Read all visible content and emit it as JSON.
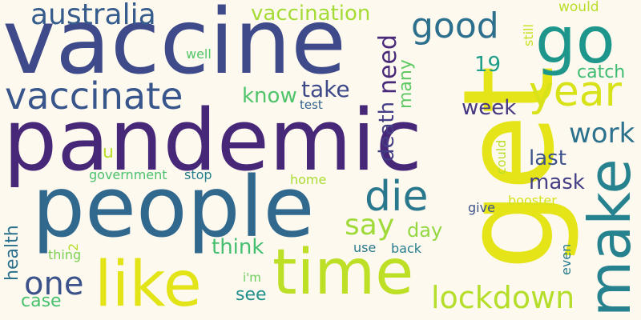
{
  "words": [
    {
      "id": "vaccine",
      "text": "vaccine",
      "color": "#3e4a89",
      "rotated": false
    },
    {
      "id": "pandemic",
      "text": "pandemic",
      "color": "#472777",
      "rotated": false
    },
    {
      "id": "people",
      "text": "people",
      "color": "#31688e",
      "rotated": false
    },
    {
      "id": "get",
      "text": "get",
      "color": "#e5e419",
      "rotated": true
    },
    {
      "id": "time",
      "text": "time",
      "color": "#bddf26",
      "rotated": false
    },
    {
      "id": "like",
      "text": "like",
      "color": "#e2e418",
      "rotated": false
    },
    {
      "id": "go",
      "text": "go",
      "color": "#1f968b",
      "rotated": false
    },
    {
      "id": "make",
      "text": "make",
      "color": "#26828e",
      "rotated": true
    },
    {
      "id": "vaccinate",
      "text": "vaccinate",
      "color": "#39568c",
      "rotated": false
    },
    {
      "id": "australia",
      "text": "australia",
      "color": "#365c8d",
      "rotated": false
    },
    {
      "id": "year",
      "text": "year",
      "color": "#d8e219",
      "rotated": false
    },
    {
      "id": "die",
      "text": "die",
      "color": "#2a788e",
      "rotated": false
    },
    {
      "id": "good",
      "text": "good",
      "color": "#2d708e",
      "rotated": false
    },
    {
      "id": "vaccination",
      "text": "vaccination",
      "color": "#a5db36",
      "rotated": false
    },
    {
      "id": "one",
      "text": "one",
      "color": "#3b528b",
      "rotated": false
    },
    {
      "id": "lockdown",
      "text": "lockdown",
      "color": "#b5de2b",
      "rotated": false
    },
    {
      "id": "work",
      "text": "work",
      "color": "#2c728e",
      "rotated": false
    },
    {
      "id": "say",
      "text": "say",
      "color": "#a0da39",
      "rotated": false
    },
    {
      "id": "need",
      "text": "need",
      "color": "#482878",
      "rotated": true
    },
    {
      "id": "death",
      "text": "death",
      "color": "#433e85",
      "rotated": true
    },
    {
      "id": "take",
      "text": "take",
      "color": "#3e4989",
      "rotated": false
    },
    {
      "id": "know",
      "text": "know",
      "color": "#50c46a",
      "rotated": false
    },
    {
      "id": "think",
      "text": "think",
      "color": "#44bf70",
      "rotated": false
    },
    {
      "id": "week",
      "text": "week",
      "color": "#453882",
      "rotated": false
    },
    {
      "id": "mask",
      "text": "mask",
      "color": "#433e85",
      "rotated": false
    },
    {
      "id": "last",
      "text": "last",
      "color": "#3b528b",
      "rotated": false
    },
    {
      "id": "many",
      "text": "many",
      "color": "#5ec962",
      "rotated": true
    },
    {
      "id": "catch",
      "text": "catch",
      "color": "#3fbc73",
      "rotated": false
    },
    {
      "id": "day",
      "text": "day",
      "color": "#93d741",
      "rotated": false
    },
    {
      "id": "health",
      "text": "health",
      "color": "#2c728e",
      "rotated": true
    },
    {
      "id": "case",
      "text": "case",
      "color": "#48c16e",
      "rotated": false
    },
    {
      "id": "see",
      "text": "see",
      "color": "#21908d",
      "rotated": false
    },
    {
      "id": "19",
      "text": "19",
      "color": "#1f9e89",
      "rotated": false
    },
    {
      "id": "u",
      "text": "u",
      "color": "#bade28",
      "rotated": false
    },
    {
      "id": "would",
      "text": "would",
      "color": "#b8de29",
      "rotated": false
    },
    {
      "id": "still",
      "text": "still",
      "color": "#c8e020",
      "rotated": true
    },
    {
      "id": "well",
      "text": "well",
      "color": "#52c569",
      "rotated": false
    },
    {
      "id": "test",
      "text": "test",
      "color": "#33638d",
      "rotated": false
    },
    {
      "id": "government",
      "text": "government",
      "color": "#4ac16d",
      "rotated": false
    },
    {
      "id": "stop",
      "text": "stop",
      "color": "#277f8e",
      "rotated": false
    },
    {
      "id": "home",
      "text": "home",
      "color": "#aadc32",
      "rotated": false
    },
    {
      "id": "could",
      "text": "could",
      "color": "#bade28",
      "rotated": true
    },
    {
      "id": "give",
      "text": "give",
      "color": "#3b528b",
      "rotated": false
    },
    {
      "id": "booster",
      "text": "booster",
      "color": "#d5e21a",
      "rotated": false
    },
    {
      "id": "2",
      "text": "2",
      "color": "#b5de2b",
      "rotated": true
    },
    {
      "id": "thing",
      "text": "thing",
      "color": "#7ad151",
      "rotated": false
    },
    {
      "id": "use",
      "text": "use",
      "color": "#2a788e",
      "rotated": false
    },
    {
      "id": "back",
      "text": "back",
      "color": "#287d8e",
      "rotated": false
    },
    {
      "id": "im",
      "text": "i'm",
      "color": "#6ccd5a",
      "rotated": false
    },
    {
      "id": "even",
      "text": "even",
      "color": "#287c8e",
      "rotated": true
    }
  ]
}
